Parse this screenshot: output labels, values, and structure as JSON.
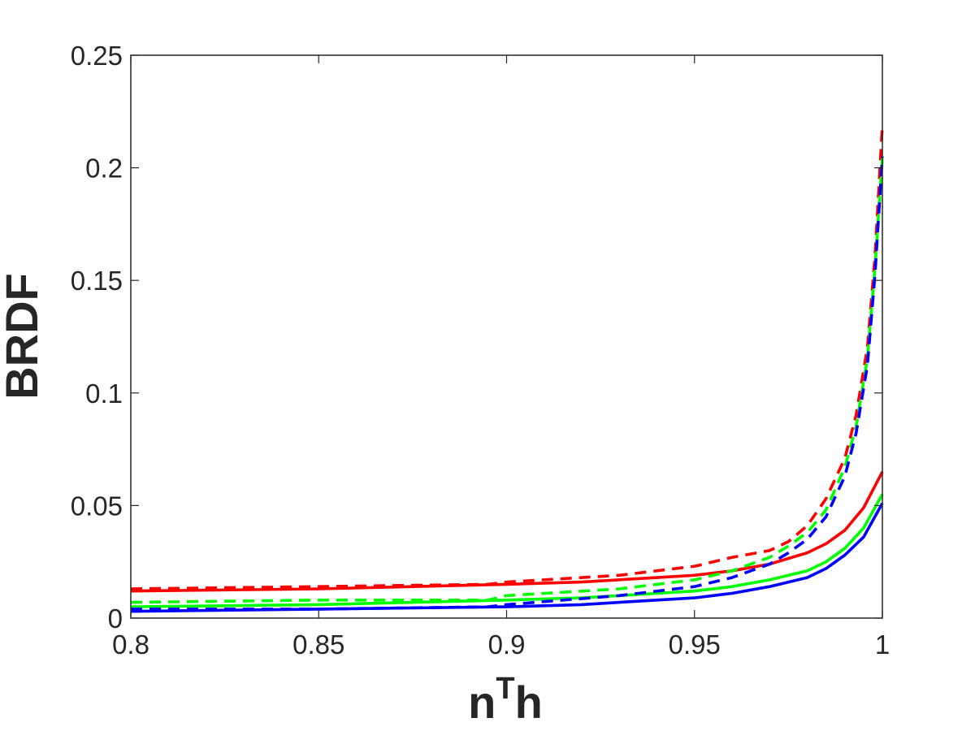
{
  "chart_data": {
    "type": "line",
    "xlabel": "n",
    "xlabel_superscript": "T",
    "xlabel_suffix": "h",
    "ylabel": "BRDF",
    "xlim": [
      0.8,
      1.0
    ],
    "ylim": [
      0,
      0.25
    ],
    "x_ticks": [
      "0.8",
      "0.85",
      "0.9",
      "0.95",
      "1"
    ],
    "y_ticks": [
      "0",
      "0.05",
      "0.1",
      "0.15",
      "0.2",
      "0.25"
    ],
    "grid": false,
    "series": [
      {
        "color": "#ff0000",
        "style": "solid",
        "x": [
          0.8,
          0.85,
          0.9,
          0.92,
          0.94,
          0.95,
          0.96,
          0.97,
          0.98,
          0.985,
          0.99,
          0.995,
          1.0
        ],
        "y": [
          0.012,
          0.013,
          0.015,
          0.016,
          0.018,
          0.019,
          0.021,
          0.024,
          0.029,
          0.033,
          0.039,
          0.049,
          0.065
        ]
      },
      {
        "color": "#00ff00",
        "style": "solid",
        "x": [
          0.8,
          0.85,
          0.9,
          0.92,
          0.94,
          0.95,
          0.96,
          0.97,
          0.98,
          0.985,
          0.99,
          0.995,
          1.0
        ],
        "y": [
          0.005,
          0.006,
          0.008,
          0.009,
          0.011,
          0.012,
          0.014,
          0.017,
          0.021,
          0.025,
          0.031,
          0.04,
          0.055
        ]
      },
      {
        "color": "#0000ff",
        "style": "solid",
        "x": [
          0.8,
          0.85,
          0.9,
          0.92,
          0.94,
          0.95,
          0.96,
          0.97,
          0.98,
          0.985,
          0.99,
          0.995,
          1.0
        ],
        "y": [
          0.003,
          0.004,
          0.005,
          0.006,
          0.008,
          0.009,
          0.011,
          0.014,
          0.018,
          0.022,
          0.028,
          0.036,
          0.051
        ]
      },
      {
        "color": "#ff0000",
        "style": "dashed",
        "x": [
          0.8,
          0.85,
          0.895,
          0.9,
          0.93,
          0.95,
          0.96,
          0.97,
          0.975,
          0.98,
          0.985,
          0.99,
          0.993,
          0.996,
          0.998,
          1.0
        ],
        "y": [
          0.013,
          0.014,
          0.015,
          0.016,
          0.019,
          0.023,
          0.027,
          0.03,
          0.034,
          0.041,
          0.053,
          0.071,
          0.09,
          0.12,
          0.16,
          0.219
        ]
      },
      {
        "color": "#00ff00",
        "style": "dashed",
        "x": [
          0.8,
          0.85,
          0.895,
          0.9,
          0.93,
          0.95,
          0.96,
          0.97,
          0.975,
          0.98,
          0.985,
          0.99,
          0.993,
          0.996,
          0.998,
          1.0
        ],
        "y": [
          0.007,
          0.008,
          0.008,
          0.01,
          0.013,
          0.017,
          0.021,
          0.027,
          0.032,
          0.038,
          0.048,
          0.067,
          0.085,
          0.115,
          0.155,
          0.205
        ]
      },
      {
        "color": "#0000ff",
        "style": "dashed",
        "x": [
          0.8,
          0.85,
          0.895,
          0.9,
          0.93,
          0.95,
          0.96,
          0.97,
          0.975,
          0.98,
          0.985,
          0.99,
          0.993,
          0.996,
          0.998,
          1.0
        ],
        "y": [
          0.004,
          0.004,
          0.005,
          0.006,
          0.01,
          0.014,
          0.018,
          0.024,
          0.029,
          0.035,
          0.045,
          0.063,
          0.082,
          0.112,
          0.152,
          0.205
        ]
      }
    ]
  }
}
